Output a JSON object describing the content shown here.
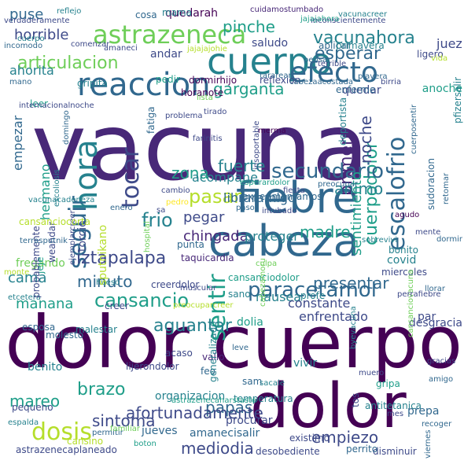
{
  "colors": {
    "background": "#ffffff",
    "palette": [
      "#440154",
      "#482878",
      "#3e4a89",
      "#31688e",
      "#26828e",
      "#1f9e89",
      "#35b779",
      "#6ece58",
      "#b5de2b",
      "#fde725"
    ]
  },
  "words": [
    {
      "text": "vacuna",
      "color": "#482878"
    },
    {
      "text": "dolor cuerpo",
      "color": "#440154"
    },
    {
      "text": "dolor",
      "color": "#440154"
    },
    {
      "text": "cabeza",
      "color": "#31688e"
    },
    {
      "text": "fiebre",
      "color": "#31688e"
    },
    {
      "text": "cuerpo",
      "color": "#26828e"
    },
    {
      "text": "reaccion",
      "color": "#31688e"
    },
    {
      "text": "efecto",
      "color": "#31688e"
    },
    {
      "text": "astrazeneca",
      "color": "#6ece58"
    },
    {
      "text": "hora",
      "color": "#26828e"
    },
    {
      "text": "seguir",
      "color": "#31688e"
    },
    {
      "text": "tocar",
      "color": "#3e4a89"
    },
    {
      "text": "escalofrio",
      "color": "#31688e"
    },
    {
      "text": "sentir",
      "color": "#1f9e89"
    },
    {
      "text": "primero",
      "color": "#482878"
    },
    {
      "text": "cuerpodolor",
      "color": "#1f9e89"
    },
    {
      "text": "secundario",
      "color": "#31688e"
    },
    {
      "text": "dosis",
      "color": "#b5de2b"
    },
    {
      "text": "paracetamol",
      "color": "#31688e"
    },
    {
      "text": "cansancio",
      "color": "#1f9e89"
    },
    {
      "text": "brazo",
      "color": "#1f9e89"
    },
    {
      "text": "aguantar",
      "color": "#26828e"
    },
    {
      "text": "vacunahora",
      "color": "#26828e"
    },
    {
      "text": "esperar",
      "color": "#31688e"
    },
    {
      "text": "articulacion",
      "color": "#6ece58"
    },
    {
      "text": "pinche",
      "color": "#1f9e89"
    },
    {
      "text": "garganta",
      "color": "#1f9e89"
    },
    {
      "text": "pasar",
      "color": "#b5de2b"
    },
    {
      "text": "frio",
      "color": "#26828e"
    },
    {
      "text": "iztapalapa",
      "color": "#3e4a89"
    },
    {
      "text": "presentar",
      "color": "#31688e"
    },
    {
      "text": "nausea",
      "color": "#26828e"
    },
    {
      "text": "madre",
      "color": "#1f9e89"
    },
    {
      "text": "sintoma",
      "color": "#3e4a89"
    },
    {
      "text": "mediodia",
      "color": "#3e4a89"
    },
    {
      "text": "papas",
      "color": "#31688e"
    },
    {
      "text": "empiezo",
      "color": "#3e4a89"
    },
    {
      "text": "mareo",
      "color": "#1f9e89"
    },
    {
      "text": "manana",
      "color": "#1f9e89"
    },
    {
      "text": "minuto",
      "color": "#31688e"
    },
    {
      "text": "noche",
      "color": "#3e4a89"
    },
    {
      "text": "animo",
      "color": "#26828e"
    },
    {
      "text": "fuerte",
      "color": "#26828e"
    },
    {
      "text": "zona",
      "color": "#1f9e89"
    },
    {
      "text": "pegar",
      "color": "#3e4a89"
    },
    {
      "text": "chingada",
      "color": "#482878"
    },
    {
      "text": "sentimiento",
      "color": "#1f9e89"
    },
    {
      "text": "cama",
      "color": "#26828e"
    },
    {
      "text": "puse",
      "color": "#31688e"
    },
    {
      "text": "horrible",
      "color": "#3e4a89"
    },
    {
      "text": "ahorita",
      "color": "#26828e"
    },
    {
      "text": "empezar",
      "color": "#31688e"
    },
    {
      "text": "hermano",
      "color": "#1f9e89"
    },
    {
      "text": "acompane",
      "color": "#26828e"
    },
    {
      "text": "libraramigo",
      "color": "#31688e"
    },
    {
      "text": "proteger",
      "color": "#26828e"
    },
    {
      "text": "constante",
      "color": "#3e4a89"
    },
    {
      "text": "enfrentado",
      "color": "#3e4a89"
    },
    {
      "text": "quedarah",
      "color": "#440154"
    },
    {
      "text": "quedar",
      "color": "#3e4a89"
    },
    {
      "text": "juez",
      "color": "#3e4a89"
    },
    {
      "text": "mama",
      "color": "#26828e"
    },
    {
      "text": "cosa",
      "color": "#31688e"
    },
    {
      "text": "saludo",
      "color": "#3e4a89"
    },
    {
      "text": "andar",
      "color": "#3e4a89"
    },
    {
      "text": "reflejo",
      "color": "#26828e"
    },
    {
      "text": "cuidamostumbado",
      "color": "#482878"
    },
    {
      "text": "inconscientemente",
      "color": "#3e4a89"
    },
    {
      "text": "verdaderamente",
      "color": "#3e4a89"
    },
    {
      "text": "comenzar",
      "color": "#3e4a89"
    },
    {
      "text": "amaneci",
      "color": "#3e4a89"
    },
    {
      "text": "jajajajohie",
      "color": "#b5de2b"
    },
    {
      "text": "aplicar",
      "color": "#31688e"
    },
    {
      "text": "primavera",
      "color": "#26828e"
    },
    {
      "text": "ligero",
      "color": "#3e4a89"
    },
    {
      "text": "gripita",
      "color": "#26828e"
    },
    {
      "text": "pedir",
      "color": "#1f9e89"
    },
    {
      "text": "dormirhijo",
      "color": "#440154"
    },
    {
      "text": "reflexion",
      "color": "#3e4a89"
    },
    {
      "text": "horanote",
      "color": "#440154"
    },
    {
      "text": "fatiga",
      "color": "#31688e"
    },
    {
      "text": "deportista",
      "color": "#26828e"
    },
    {
      "text": "anoche",
      "color": "#1f9e89"
    },
    {
      "text": "covid",
      "color": "#26828e"
    },
    {
      "text": "bonito",
      "color": "#26828e"
    },
    {
      "text": "miercoles",
      "color": "#3e4a89"
    },
    {
      "text": "par",
      "color": "#3e4a89"
    },
    {
      "text": "desgracia",
      "color": "#3e4a89"
    },
    {
      "text": "profe",
      "color": "#26828e"
    },
    {
      "text": "sano",
      "color": "#26828e"
    },
    {
      "text": "dolia",
      "color": "#1f9e89"
    },
    {
      "text": "creer",
      "color": "#3e4a89"
    },
    {
      "text": "creerdolor",
      "color": "#3e4a89"
    },
    {
      "text": "cansanciodolor",
      "color": "#1f9e89"
    },
    {
      "text": "taquicardia",
      "color": "#482878"
    },
    {
      "text": "punta",
      "color": "#31688e"
    },
    {
      "text": "fregando",
      "color": "#6ece58"
    },
    {
      "text": "esposa",
      "color": "#31688e"
    },
    {
      "text": "molesto",
      "color": "#31688e"
    },
    {
      "text": "malestar",
      "color": "#26828e"
    },
    {
      "text": "benito",
      "color": "#26828e"
    },
    {
      "text": "lijerondolor",
      "color": "#3e4a89"
    },
    {
      "text": "valio",
      "color": "#482878"
    },
    {
      "text": "vivir",
      "color": "#26828e"
    },
    {
      "text": "organizacion",
      "color": "#26828e"
    },
    {
      "text": "afortunadamente",
      "color": "#3e4a89"
    },
    {
      "text": "procurar",
      "color": "#3e4a89"
    },
    {
      "text": "jueves",
      "color": "#31688e"
    },
    {
      "text": "amanecisalir",
      "color": "#31688e"
    },
    {
      "text": "desobediente",
      "color": "#3e4a89"
    },
    {
      "text": "disminuir",
      "color": "#3e4a89"
    },
    {
      "text": "astrazenecaplaneado",
      "color": "#3e4a89"
    },
    {
      "text": "pequeno",
      "color": "#3e4a89"
    },
    {
      "text": "espalda",
      "color": "#26828e"
    },
    {
      "text": "antitetanica",
      "color": "#26828e"
    },
    {
      "text": "gripa",
      "color": "#1f9e89"
    },
    {
      "text": "prepa",
      "color": "#31688e"
    },
    {
      "text": "temperatura",
      "color": "#26828e"
    },
    {
      "text": "existimo",
      "color": "#3e4a89"
    },
    {
      "text": "perrito",
      "color": "#31688e"
    },
    {
      "text": "cansino",
      "color": "#b5de2b"
    },
    {
      "text": "recoger",
      "color": "#31688e"
    },
    {
      "text": "gracias",
      "color": "#3e4a89"
    },
    {
      "text": "amigo",
      "color": "#31688e"
    },
    {
      "text": "mente",
      "color": "#3e4a89"
    },
    {
      "text": "agudo",
      "color": "#440154"
    },
    {
      "text": "retomar",
      "color": "#31688e"
    },
    {
      "text": "preocupar",
      "color": "#31688e"
    },
    {
      "text": "pedro",
      "color": "#fde725"
    },
    {
      "text": "muscular",
      "color": "#3e4a89"
    },
    {
      "text": "hueso",
      "color": "#26828e"
    },
    {
      "text": "monte",
      "color": "#b5de2b"
    },
    {
      "text": "etcetera",
      "color": "#26828e"
    },
    {
      "text": "sam",
      "color": "#31688e"
    },
    {
      "text": "feo",
      "color": "#31688e"
    },
    {
      "text": "acaso",
      "color": "#3e4a89"
    },
    {
      "text": "leve",
      "color": "#31688e"
    },
    {
      "text": "muero",
      "color": "#3e4a89"
    },
    {
      "text": "sacale",
      "color": "#26828e"
    },
    {
      "text": "tos",
      "color": "#3e4a89"
    },
    {
      "text": "mes",
      "color": "#3e4a89"
    },
    {
      "text": "viernes",
      "color": "#31688e"
    },
    {
      "text": "permitir",
      "color": "#31688e"
    },
    {
      "text": "boton",
      "color": "#1f9e89"
    },
    {
      "text": "cuerpo",
      "color": "#26828e"
    },
    {
      "text": "incomodo",
      "color": "#31688e"
    },
    {
      "text": "mano",
      "color": "#31688e"
    },
    {
      "text": "leer",
      "color": "#1f9e89"
    },
    {
      "text": "internacionalnoche",
      "color": "#3e4a89"
    },
    {
      "text": "domingo",
      "color": "#31688e"
    },
    {
      "text": "escoliosis",
      "color": "#26828e"
    },
    {
      "text": "jeje",
      "color": "#1f9e89"
    },
    {
      "text": "probablemente",
      "color": "#3e4a89"
    },
    {
      "text": "weandar",
      "color": "#3e4a89"
    },
    {
      "text": "farinitis",
      "color": "#3e4a89"
    },
    {
      "text": "tirado",
      "color": "#3e4a89"
    },
    {
      "text": "problema",
      "color": "#3e4a89"
    },
    {
      "text": "lista",
      "color": "#6ece58"
    },
    {
      "text": "cabezaacostada",
      "color": "#31688e"
    },
    {
      "text": "tararear",
      "color": "#31688e"
    },
    {
      "text": "terrible",
      "color": "#3e4a89"
    },
    {
      "text": "pensar",
      "color": "#31688e"
    },
    {
      "text": "playera",
      "color": "#31688e"
    },
    {
      "text": "vida",
      "color": "#b5de2b"
    },
    {
      "text": "enferme",
      "color": "#31688e"
    },
    {
      "text": "birria",
      "color": "#3e4a89"
    },
    {
      "text": "vacunacreer",
      "color": "#26828e"
    },
    {
      "text": "jajajahora",
      "color": "#1f9e89"
    },
    {
      "text": "cuerposentir",
      "color": "#31688e"
    },
    {
      "text": "pfizersalir",
      "color": "#26828e"
    },
    {
      "text": "sudoracion",
      "color": "#31688e"
    },
    {
      "text": "esperardolor",
      "color": "#1f9e89"
    },
    {
      "text": "cambio",
      "color": "#3e4a89"
    },
    {
      "text": "enero",
      "color": "#31688e"
    },
    {
      "text": "sa",
      "color": "#3e4a89"
    },
    {
      "text": "intubado",
      "color": "#3e4a89"
    },
    {
      "text": "fiesta",
      "color": "#3e4a89"
    },
    {
      "text": "paso",
      "color": "#31688e"
    },
    {
      "text": "merma",
      "color": "#440154"
    },
    {
      "text": "experimentamos",
      "color": "#31688e"
    },
    {
      "text": "ejemplarcreer",
      "color": "#3e4a89"
    },
    {
      "text": "torcio",
      "color": "#3e4a89"
    },
    {
      "text": "sputnikano",
      "color": "#b5de2b"
    },
    {
      "text": "cabezamoru",
      "color": "#6ece58"
    },
    {
      "text": "insoportable",
      "color": "#3e4a89"
    },
    {
      "text": "culpa",
      "color": "#6ece58"
    },
    {
      "text": "sobrevivi",
      "color": "#26828e"
    },
    {
      "text": "dormir",
      "color": "#31688e"
    },
    {
      "text": "cansanciovacuna",
      "color": "#6ece58"
    },
    {
      "text": "llorar",
      "color": "#31688e"
    },
    {
      "text": "byevacuna",
      "color": "#26828e"
    },
    {
      "text": "generalizado",
      "color": "#26828e"
    },
    {
      "text": "preocuparcreer",
      "color": "#b5de2b"
    },
    {
      "text": "astrazenecaharstaste",
      "color": "#1f9e89"
    },
    {
      "text": "familiar",
      "color": "#6ece58"
    },
    {
      "text": "perrafiebre",
      "color": "#3e4a89"
    },
    {
      "text": "hospital",
      "color": "#6ece58"
    },
    {
      "text": "terrasputnik",
      "color": "#31688e"
    },
    {
      "text": "vacunacadeneza",
      "color": "#26828e"
    },
    {
      "text": "cansanciocorta",
      "color": "#b5de2b"
    }
  ]
}
